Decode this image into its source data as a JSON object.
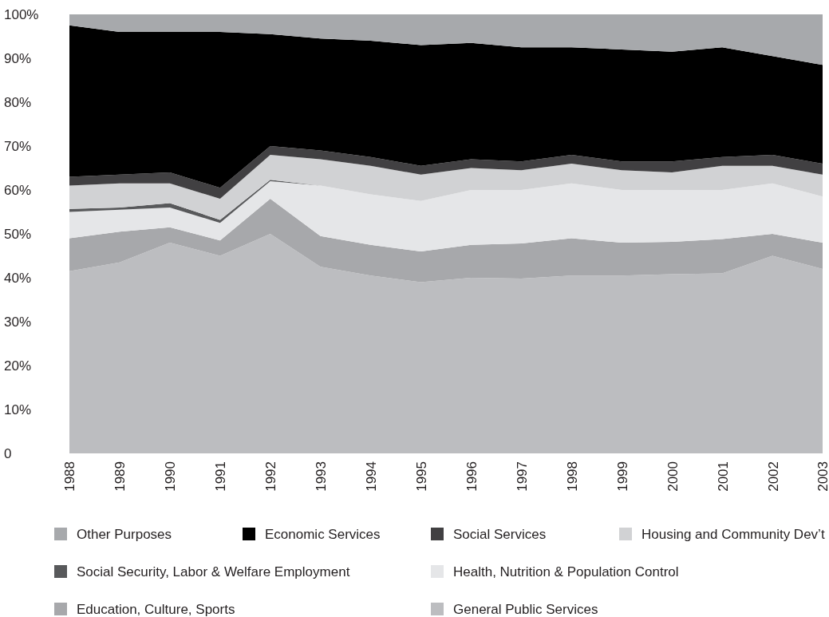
{
  "chart_data": {
    "type": "area",
    "stacked": true,
    "categories": [
      "1988",
      "1989",
      "1990",
      "1991",
      "1992",
      "1993",
      "1994",
      "1995",
      "1996",
      "1997",
      "1998",
      "1999",
      "2000",
      "2001",
      "2002",
      "2003"
    ],
    "ylim": [
      0,
      100
    ],
    "yticks": [
      {
        "value": 0,
        "label": "0"
      },
      {
        "value": 10,
        "label": "10%"
      },
      {
        "value": 20,
        "label": "20%"
      },
      {
        "value": 30,
        "label": "30%"
      },
      {
        "value": 40,
        "label": "40%"
      },
      {
        "value": 50,
        "label": "50%"
      },
      {
        "value": 60,
        "label": "60%"
      },
      {
        "value": 70,
        "label": "70%"
      },
      {
        "value": 80,
        "label": "80%"
      },
      {
        "value": 90,
        "label": "90%"
      },
      {
        "value": 100,
        "label": "100%"
      }
    ],
    "grid": false,
    "legend": "bottom",
    "series": [
      {
        "name": "General Public Services",
        "color": "#bcbdc0",
        "values": [
          41.5,
          43.5,
          48,
          45,
          50,
          42.5,
          40.5,
          39,
          40,
          39.8,
          40.5,
          40.5,
          40.8,
          41,
          45,
          42
        ]
      },
      {
        "name": "Education, Culture, Sports",
        "color": "#a7a8ab",
        "values": [
          7.5,
          7,
          3.5,
          3.5,
          8,
          7,
          7,
          7,
          7.5,
          8,
          8.5,
          7.5,
          7.4,
          7.8,
          5,
          6
        ]
      },
      {
        "name": "Health, Nutrition & Population Control",
        "color": "#e5e6e8",
        "values": [
          6,
          5,
          4.5,
          4,
          4,
          11.5,
          11.5,
          11.5,
          12.5,
          12.2,
          12.5,
          12,
          11.8,
          11.2,
          11.5,
          10.5
        ]
      },
      {
        "name": "Social Security, Labor & Welfare Employment",
        "color": "#58595b",
        "values": [
          0.7,
          0.5,
          1,
          0.7,
          0.3,
          0,
          0,
          0,
          0,
          0,
          0,
          0,
          0,
          0,
          0,
          0
        ]
      },
      {
        "name": "Housing and Community Dev’t",
        "color": "#d1d2d4",
        "values": [
          5.3,
          5.5,
          4.5,
          4.8,
          5.7,
          6,
          6.5,
          6,
          5,
          4.5,
          4.5,
          4.5,
          4,
          5.5,
          4,
          5
        ]
      },
      {
        "name": "Social Services",
        "color": "#414042",
        "values": [
          2,
          2,
          2.5,
          2.5,
          2,
          2,
          2,
          2,
          2,
          2,
          2,
          2,
          2.5,
          2,
          2.5,
          2.5
        ]
      },
      {
        "name": "Economic Services",
        "color": "#000000",
        "values": [
          34.5,
          32.5,
          32,
          35.5,
          25.5,
          25.5,
          26.5,
          27.5,
          26.5,
          26,
          24.5,
          25.5,
          25,
          25,
          22.5,
          22.5
        ]
      },
      {
        "name": "Other Purposes",
        "color": "#a7a9ac",
        "values": [
          2.5,
          4,
          4,
          4,
          4.5,
          5.5,
          6,
          7,
          6.5,
          7.5,
          7.5,
          8,
          8.5,
          7.5,
          9.5,
          11.5
        ]
      }
    ]
  }
}
